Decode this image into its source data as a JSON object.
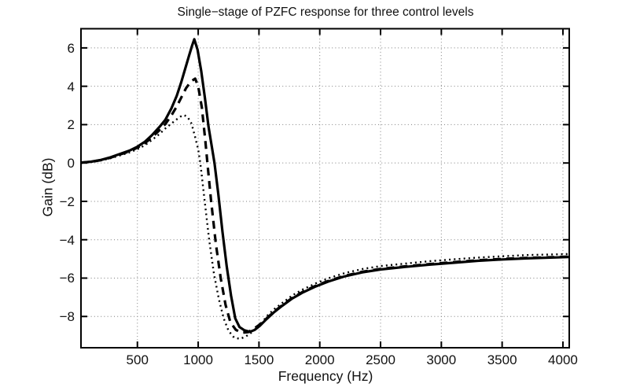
{
  "chart_data": {
    "type": "line",
    "title": "Single−stage of PZFC response for three control levels",
    "xlabel": "Frequency (Hz)",
    "ylabel": "Gain (dB)",
    "xlim": [
      36,
      4052
    ],
    "ylim": [
      -9.63,
      7.0
    ],
    "grid": true,
    "grid_style": "dotted",
    "legend": "none",
    "axis_color": "#000000",
    "grid_color": "#7d7d7d",
    "background": "#ffffff",
    "xticks": [
      500,
      1000,
      1500,
      2000,
      2500,
      3000,
      3500,
      4000
    ],
    "xtick_labels": [
      "500",
      "1000",
      "1500",
      "2000",
      "2500",
      "3000",
      "3500",
      "4000"
    ],
    "yticks": [
      6,
      4,
      2,
      0,
      -2,
      -4,
      -6,
      -8
    ],
    "ytick_labels": [
      "6",
      "4",
      "2",
      "0",
      "−2",
      "−4",
      "−6",
      "−8"
    ],
    "series": [
      {
        "id": "dotted-curve",
        "line_style": "dotted",
        "color": "#000000",
        "width": 2.4,
        "dash": [
          2,
          4.2
        ],
        "peak_db": 2.5,
        "peak_hz": 885,
        "min_db": -9.17,
        "min_hz": 1345,
        "points": [
          [
            36,
            0
          ],
          [
            120,
            0.05
          ],
          [
            200,
            0.13
          ],
          [
            280,
            0.25
          ],
          [
            360,
            0.4
          ],
          [
            440,
            0.56
          ],
          [
            500,
            0.72
          ],
          [
            560,
            0.92
          ],
          [
            620,
            1.2
          ],
          [
            680,
            1.5
          ],
          [
            730,
            1.8
          ],
          [
            780,
            2.06
          ],
          [
            820,
            2.26
          ],
          [
            855,
            2.42
          ],
          [
            885,
            2.5
          ],
          [
            915,
            2.38
          ],
          [
            945,
            2.05
          ],
          [
            975,
            1.35
          ],
          [
            1000,
            0.7
          ],
          [
            1018,
            0
          ],
          [
            1050,
            -1.8
          ],
          [
            1090,
            -4.0
          ],
          [
            1130,
            -5.8
          ],
          [
            1170,
            -7.1
          ],
          [
            1210,
            -8.1
          ],
          [
            1250,
            -8.75
          ],
          [
            1295,
            -9.1
          ],
          [
            1345,
            -9.17
          ],
          [
            1395,
            -9.03
          ],
          [
            1440,
            -8.83
          ],
          [
            1485,
            -8.58
          ],
          [
            1525,
            -8.33
          ],
          [
            1565,
            -7.98
          ],
          [
            1625,
            -7.62
          ],
          [
            1695,
            -7.28
          ],
          [
            1775,
            -6.9
          ],
          [
            1865,
            -6.58
          ],
          [
            1965,
            -6.28
          ],
          [
            2075,
            -6.0
          ],
          [
            2205,
            -5.74
          ],
          [
            2355,
            -5.52
          ],
          [
            2505,
            -5.37
          ],
          [
            2705,
            -5.24
          ],
          [
            2905,
            -5.12
          ],
          [
            3105,
            -5.02
          ],
          [
            3305,
            -4.93
          ],
          [
            3505,
            -4.86
          ],
          [
            3705,
            -4.8
          ],
          [
            3950,
            -4.76
          ],
          [
            4052,
            -4.74
          ]
        ]
      },
      {
        "id": "dashed-curve",
        "line_style": "dashed",
        "color": "#000000",
        "width": 3.2,
        "dash": [
          10,
          7
        ],
        "peak_db": 4.4,
        "peak_hz": 975,
        "min_db": -8.85,
        "min_hz": 1360,
        "points": [
          [
            36,
            0.02
          ],
          [
            120,
            0.06
          ],
          [
            200,
            0.15
          ],
          [
            280,
            0.28
          ],
          [
            360,
            0.45
          ],
          [
            440,
            0.62
          ],
          [
            500,
            0.8
          ],
          [
            560,
            1.02
          ],
          [
            620,
            1.34
          ],
          [
            680,
            1.7
          ],
          [
            730,
            2.03
          ],
          [
            780,
            2.48
          ],
          [
            824,
            2.95
          ],
          [
            860,
            3.4
          ],
          [
            900,
            3.9
          ],
          [
            940,
            4.25
          ],
          [
            975,
            4.4
          ],
          [
            1000,
            4.0
          ],
          [
            1030,
            2.9
          ],
          [
            1060,
            1.1
          ],
          [
            1076,
            0
          ],
          [
            1105,
            -1.9
          ],
          [
            1145,
            -4.2
          ],
          [
            1185,
            -6.0
          ],
          [
            1225,
            -7.4
          ],
          [
            1265,
            -8.3
          ],
          [
            1310,
            -8.7
          ],
          [
            1360,
            -8.85
          ],
          [
            1410,
            -8.82
          ],
          [
            1455,
            -8.65
          ],
          [
            1500,
            -8.45
          ],
          [
            1560,
            -8.12
          ],
          [
            1620,
            -7.77
          ],
          [
            1690,
            -7.42
          ],
          [
            1770,
            -7.05
          ],
          [
            1860,
            -6.72
          ],
          [
            1960,
            -6.42
          ],
          [
            2070,
            -6.15
          ],
          [
            2200,
            -5.89
          ],
          [
            2350,
            -5.67
          ],
          [
            2500,
            -5.52
          ],
          [
            2700,
            -5.39
          ],
          [
            2900,
            -5.27
          ],
          [
            3100,
            -5.17
          ],
          [
            3300,
            -5.07
          ],
          [
            3500,
            -5.0
          ],
          [
            3700,
            -4.95
          ],
          [
            3950,
            -4.9
          ],
          [
            4052,
            -4.88
          ]
        ]
      },
      {
        "id": "solid-curve",
        "line_style": "solid",
        "color": "#000000",
        "width": 3.2,
        "dash": null,
        "peak_db": 6.45,
        "peak_hz": 968,
        "min_db": -8.8,
        "min_hz": 1425,
        "points": [
          [
            36,
            0.02
          ],
          [
            120,
            0.07
          ],
          [
            200,
            0.16
          ],
          [
            280,
            0.3
          ],
          [
            360,
            0.48
          ],
          [
            440,
            0.66
          ],
          [
            500,
            0.85
          ],
          [
            560,
            1.1
          ],
          [
            620,
            1.45
          ],
          [
            680,
            1.87
          ],
          [
            730,
            2.25
          ],
          [
            780,
            2.85
          ],
          [
            824,
            3.5
          ],
          [
            860,
            4.2
          ],
          [
            895,
            4.95
          ],
          [
            925,
            5.6
          ],
          [
            950,
            6.12
          ],
          [
            968,
            6.45
          ],
          [
            995,
            5.9
          ],
          [
            1025,
            4.8
          ],
          [
            1055,
            3.4
          ],
          [
            1085,
            1.9
          ],
          [
            1115,
            0.75
          ],
          [
            1134,
            0
          ],
          [
            1165,
            -1.6
          ],
          [
            1200,
            -3.6
          ],
          [
            1235,
            -5.4
          ],
          [
            1270,
            -6.9
          ],
          [
            1305,
            -8.1
          ],
          [
            1340,
            -8.55
          ],
          [
            1380,
            -8.72
          ],
          [
            1425,
            -8.8
          ],
          [
            1465,
            -8.7
          ],
          [
            1505,
            -8.5
          ],
          [
            1560,
            -8.15
          ],
          [
            1620,
            -7.8
          ],
          [
            1690,
            -7.45
          ],
          [
            1770,
            -7.08
          ],
          [
            1860,
            -6.75
          ],
          [
            1960,
            -6.45
          ],
          [
            2070,
            -6.18
          ],
          [
            2200,
            -5.92
          ],
          [
            2350,
            -5.7
          ],
          [
            2500,
            -5.55
          ],
          [
            2700,
            -5.42
          ],
          [
            2900,
            -5.3
          ],
          [
            3100,
            -5.2
          ],
          [
            3300,
            -5.1
          ],
          [
            3500,
            -5.03
          ],
          [
            3700,
            -4.97
          ],
          [
            3950,
            -4.92
          ],
          [
            4052,
            -4.9
          ]
        ]
      }
    ]
  }
}
